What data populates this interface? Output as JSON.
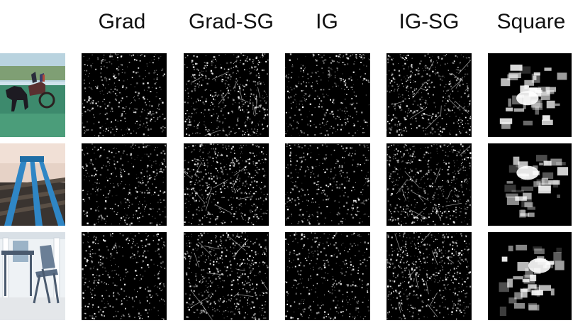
{
  "figure": {
    "columns": [
      {
        "key": "grad",
        "label": "Grad"
      },
      {
        "key": "grad_sg",
        "label": "Grad-SG"
      },
      {
        "key": "ig",
        "label": "IG"
      },
      {
        "key": "ig_sg",
        "label": "IG-SG"
      },
      {
        "key": "square",
        "label": "Square"
      }
    ],
    "rows": [
      {
        "key": "horse-cart",
        "image_icon": "horse-cart-photo"
      },
      {
        "key": "indoor-ramp",
        "image_icon": "blue-rails-photo"
      },
      {
        "key": "chair-table",
        "image_icon": "folding-chair-photo"
      }
    ],
    "colors": {
      "background": "#ffffff",
      "map_background": "#000000",
      "saliency": "#ffffff"
    }
  }
}
